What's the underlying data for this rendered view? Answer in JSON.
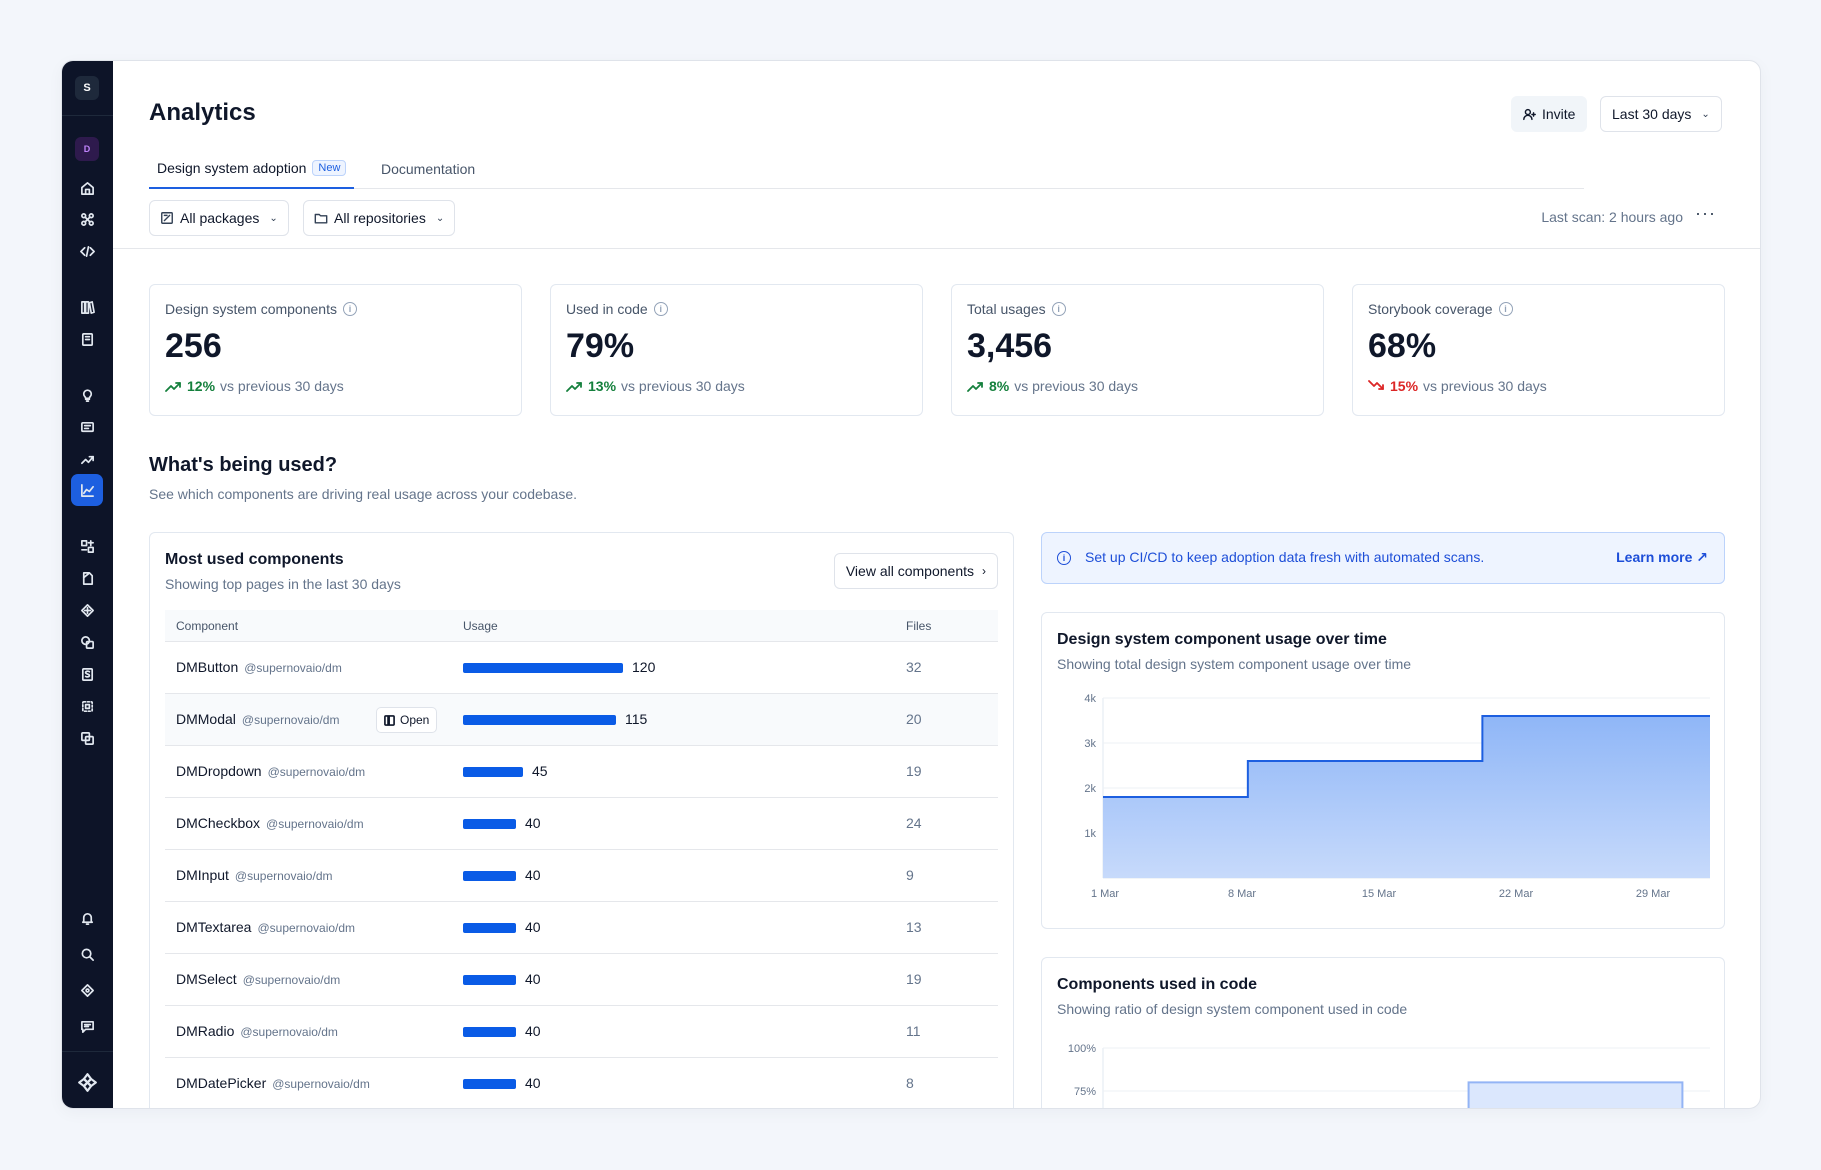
{
  "sidebar": {
    "workspace_top": "S",
    "workspace_second": "D",
    "icons": [
      "home-icon",
      "command-icon",
      "code-icon",
      "library-icon",
      "book-icon",
      "lightbulb-icon",
      "feedback-icon",
      "trending-icon",
      "analytics-icon",
      "components-icon",
      "file-icon",
      "figma-icon",
      "layers-icon",
      "storybook-icon",
      "frame-icon",
      "copy-icon",
      "bell-icon",
      "search-icon",
      "ticket-icon",
      "chat-icon",
      "logo-icon"
    ],
    "active_icon": "analytics-icon"
  },
  "header": {
    "title": "Analytics",
    "invite_label": "Invite",
    "date_range": "Last 30 days"
  },
  "tabs": [
    {
      "label": "Design system adoption",
      "badge": "New",
      "active": true
    },
    {
      "label": "Documentation",
      "active": false
    }
  ],
  "filters": {
    "packages": "All packages",
    "repositories": "All repositories",
    "last_scan": "Last scan: 2 hours ago",
    "more": "···"
  },
  "stats": [
    {
      "label": "Design system components",
      "value": "256",
      "delta": "12%",
      "direction": "up",
      "suffix": "vs previous 30 days"
    },
    {
      "label": "Used in code",
      "value": "79%",
      "delta": "13%",
      "direction": "up",
      "suffix": "vs previous 30 days"
    },
    {
      "label": "Total usages",
      "value": "3,456",
      "delta": "8%",
      "direction": "up",
      "suffix": "vs previous 30 days"
    },
    {
      "label": "Storybook coverage",
      "value": "68%",
      "delta": "15%",
      "direction": "down",
      "suffix": "vs previous 30 days"
    }
  ],
  "usage_section": {
    "title": "What's being used?",
    "subtitle": "See which components are driving real usage across your codebase."
  },
  "most_used": {
    "title": "Most used components",
    "subtitle": "Showing top pages in the last 30 days",
    "view_all": "View all components",
    "columns": {
      "component": "Component",
      "usage": "Usage",
      "files": "Files"
    },
    "open_label": "Open",
    "max_usage": 120,
    "rows": [
      {
        "name": "DMButton",
        "package": "@supernovaio/dm",
        "usage": "120",
        "files": "32"
      },
      {
        "name": "DMModal",
        "package": "@supernovaio/dm",
        "usage": "115",
        "files": "20",
        "hover": true
      },
      {
        "name": "DMDropdown",
        "package": "@supernovaio/dm",
        "usage": "45",
        "files": "19"
      },
      {
        "name": "DMCheckbox",
        "package": "@supernovaio/dm",
        "usage": "40",
        "files": "24"
      },
      {
        "name": "DMInput",
        "package": "@supernovaio/dm",
        "usage": "40",
        "files": "9"
      },
      {
        "name": "DMTextarea",
        "package": "@supernovaio/dm",
        "usage": "40",
        "files": "13"
      },
      {
        "name": "DMSelect",
        "package": "@supernovaio/dm",
        "usage": "40",
        "files": "19"
      },
      {
        "name": "DMRadio",
        "package": "@supernovaio/dm",
        "usage": "40",
        "files": "11"
      },
      {
        "name": "DMDatePicker",
        "package": "@supernovaio/dm",
        "usage": "40",
        "files": "8"
      }
    ]
  },
  "banner": {
    "text": "Set up CI/CD to keep adoption data fresh with automated scans.",
    "link": "Learn more ↗"
  },
  "usage_chart": {
    "title": "Design system component usage over time",
    "subtitle": "Showing total design system component usage over time"
  },
  "code_chart": {
    "title": "Components used in code",
    "subtitle": "Showing ratio of design system component used in code"
  },
  "chart_data": [
    {
      "type": "area",
      "title": "Design system component usage over time",
      "x": [
        "1 Mar",
        "8 Mar",
        "15 Mar",
        "22 Mar",
        "29 Mar"
      ],
      "y_ticks": [
        "1k",
        "2k",
        "3k",
        "4k"
      ],
      "ylim": [
        0,
        4000
      ],
      "step_points": [
        [
          0,
          1800
        ],
        [
          1.05,
          1800
        ],
        [
          1.05,
          2600
        ],
        [
          2.75,
          2600
        ],
        [
          2.75,
          3600
        ],
        [
          4.4,
          3600
        ]
      ],
      "color": "#1d5fe0",
      "fill": "#8fb6f7"
    },
    {
      "type": "area",
      "title": "Components used in code",
      "y_ticks": [
        "75%",
        "100%"
      ],
      "ylim": [
        0,
        100
      ],
      "step_points": [
        [
          0,
          0
        ],
        [
          2.65,
          0
        ],
        [
          2.65,
          80
        ],
        [
          4.2,
          80
        ]
      ],
      "color": "#93b4f5",
      "fill": "#dbe7fd"
    }
  ]
}
